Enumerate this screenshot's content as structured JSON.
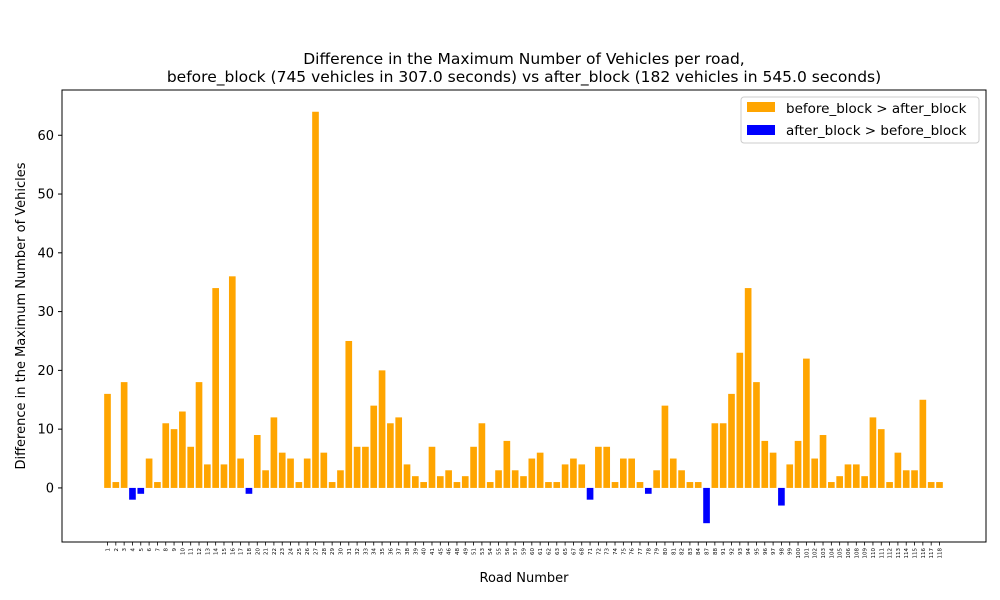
{
  "chart_data": {
    "type": "bar",
    "title_line1": "Difference in the Maximum Number of Vehicles per road,",
    "title_line2": "before_block (745 vehicles in 307.0 seconds) vs after_block (182 vehicles in 545.0 seconds)",
    "xlabel": "Road Number",
    "ylabel": "Difference in the Maximum Number of Vehicles",
    "ylim": [
      -9.2,
      67.7
    ],
    "yticks": [
      0,
      10,
      20,
      30,
      40,
      50,
      60
    ],
    "legend_placement": "top-right",
    "series": [
      {
        "name": "before_block > after_block",
        "color": "#FFA500"
      },
      {
        "name": "after_block > before_block",
        "color": "#0000FF"
      }
    ],
    "categories": [
      "1",
      "2",
      "3",
      "4",
      "5",
      "6",
      "7",
      "8",
      "9",
      "10",
      "11",
      "12",
      "13",
      "14",
      "15",
      "16",
      "17",
      "18",
      "19",
      "20",
      "21",
      "22",
      "23",
      "24",
      "25",
      "26",
      "27",
      "28",
      "29",
      "30",
      "31",
      "32",
      "33",
      "34",
      "35",
      "36",
      "37",
      "38",
      "39",
      "40",
      "41",
      "42",
      "43",
      "44",
      "45",
      "46",
      "47",
      "48",
      "49",
      "50",
      "51",
      "52",
      "53",
      "54",
      "55",
      "56",
      "57",
      "58",
      "59",
      "60",
      "61",
      "62",
      "63",
      "64",
      "65",
      "66",
      "67",
      "68",
      "69",
      "70",
      "71",
      "72",
      "73",
      "74",
      "75",
      "76",
      "77",
      "78",
      "79",
      "80",
      "81",
      "82",
      "83",
      "84",
      "85",
      "86",
      "87",
      "88",
      "89",
      "90",
      "91",
      "92",
      "93",
      "94",
      "95",
      "96",
      "97",
      "98",
      "99",
      "100",
      "101"
    ],
    "xtick_labels": [
      "1",
      "2",
      "3",
      "4",
      "5",
      "6",
      "7",
      "8",
      "9",
      "10",
      "11",
      "12",
      "13",
      "14",
      "15",
      "16",
      "17",
      "18",
      "20",
      "21",
      "22",
      "23",
      "24",
      "25",
      "26",
      "27",
      "28",
      "29",
      "30",
      "31",
      "32",
      "33",
      "34",
      "35",
      "36",
      "37",
      "38",
      "39",
      "40",
      "41",
      "45",
      "46",
      "48",
      "49",
      "51",
      "53",
      "54",
      "55",
      "56",
      "57",
      "59",
      "60",
      "61",
      "62",
      "63",
      "65",
      "67",
      "68",
      "71",
      "72",
      "73",
      "74",
      "75",
      "76",
      "77",
      "78",
      "79",
      "80",
      "81",
      "82",
      "83",
      "84",
      "87",
      "88",
      "91",
      "92",
      "93",
      "94",
      "95",
      "96",
      "97",
      "98",
      "99",
      "100",
      "101",
      "102",
      "103",
      "104",
      "105",
      "106",
      "108",
      "109",
      "110",
      "111",
      "112",
      "113",
      "114",
      "115",
      "116",
      "117",
      "118"
    ],
    "values": [
      16,
      1,
      18,
      -2,
      -1,
      5,
      1,
      11,
      10,
      13,
      7,
      18,
      4,
      34,
      4,
      36,
      5,
      -1,
      9,
      3,
      12,
      6,
      5,
      1,
      5,
      64,
      6,
      1,
      3,
      25,
      7,
      7,
      14,
      20,
      11,
      12,
      4,
      2,
      1,
      7,
      2,
      3,
      1,
      2,
      7,
      11,
      1,
      3,
      8,
      3,
      2,
      5,
      6,
      1,
      1,
      4,
      5,
      4,
      -2,
      7,
      7,
      1,
      5,
      5,
      1,
      -1,
      3,
      14,
      5,
      3,
      1,
      1,
      -6,
      11,
      11,
      16,
      23,
      34,
      18,
      8,
      6,
      -3,
      4,
      8,
      22,
      5,
      9,
      1,
      2,
      4,
      4,
      2,
      12,
      10,
      1,
      6,
      3,
      3,
      15,
      1,
      1
    ]
  }
}
